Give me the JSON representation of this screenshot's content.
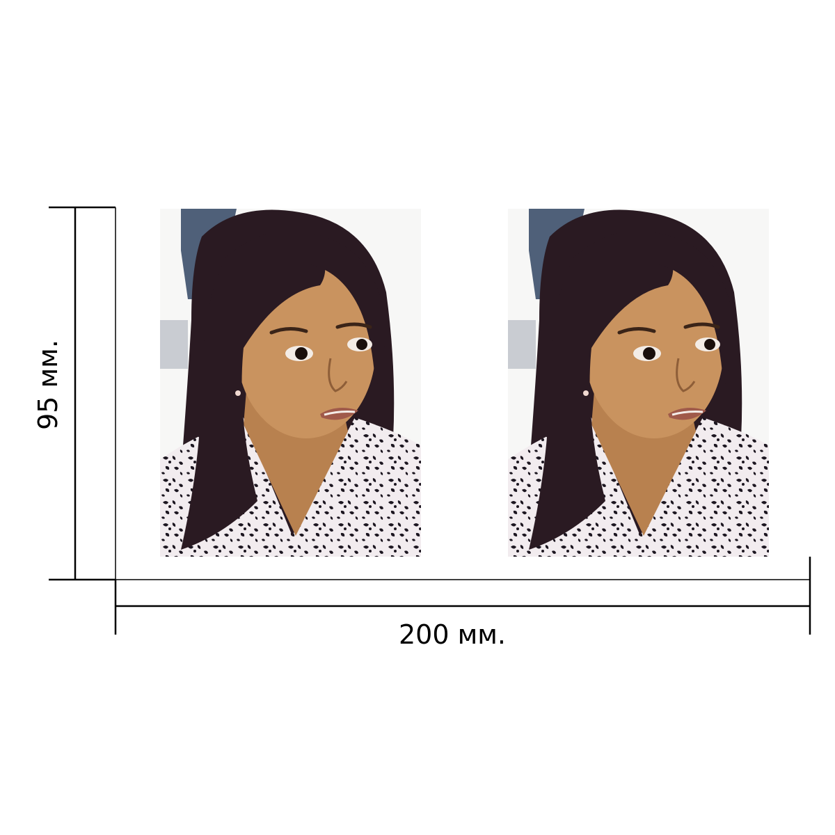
{
  "dimensions": {
    "height_label": "95 мм.",
    "width_label": "200 мм."
  },
  "colors": {
    "line": "#000000",
    "background": "#ffffff",
    "hair": "#2a1a22",
    "skin": "#c9935f",
    "shirt": "#f2ecef",
    "spots": "#1c1620",
    "jeans": "#4f6079"
  },
  "photos": {
    "count": 2,
    "subject": "girl-portrait"
  }
}
